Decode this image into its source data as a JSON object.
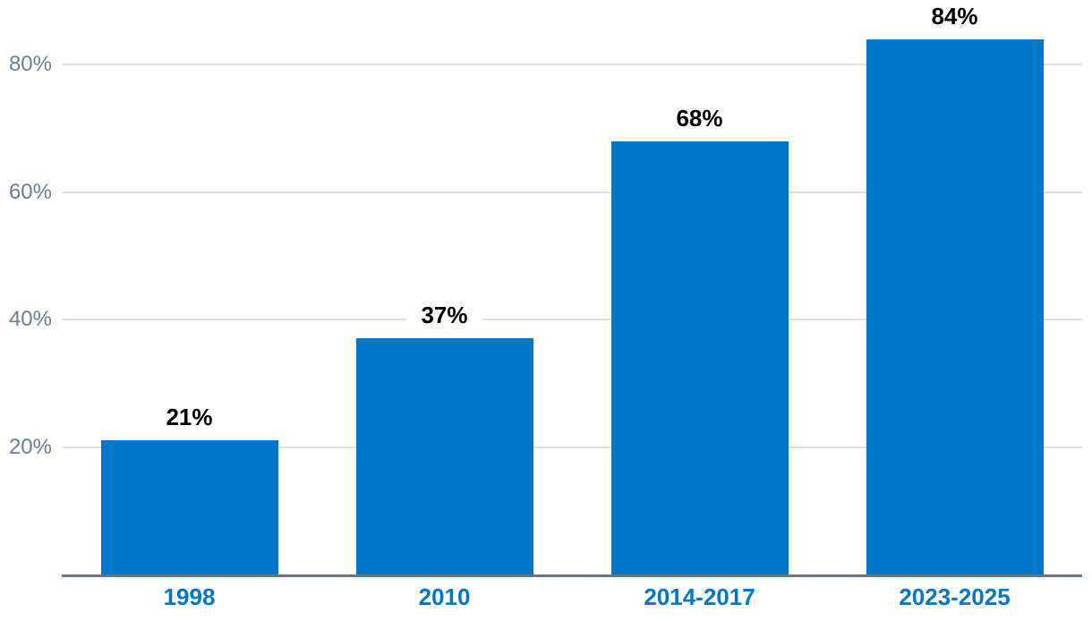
{
  "chart_data": {
    "type": "bar",
    "title": "",
    "xlabel": "",
    "ylabel": "",
    "categories": [
      "1998",
      "2010",
      "2014-2017",
      "2023-2025"
    ],
    "values": [
      21,
      37,
      68,
      84
    ],
    "value_labels": [
      "21%",
      "37%",
      "68%",
      "84%"
    ],
    "yticks": [
      20,
      40,
      60,
      80
    ],
    "ytick_labels": [
      "20%",
      "40%",
      "60%",
      "80%"
    ],
    "ylim": [
      0,
      90
    ],
    "grid": true,
    "legend": false,
    "colors": {
      "bar": "#0077c8",
      "xtick_label": "#0077c8",
      "ytick_label": "#6d7c92",
      "gridline": "#d9dee7",
      "axis_line": "#6a7487",
      "value_label": "#000000",
      "background": "#ffffff"
    }
  }
}
